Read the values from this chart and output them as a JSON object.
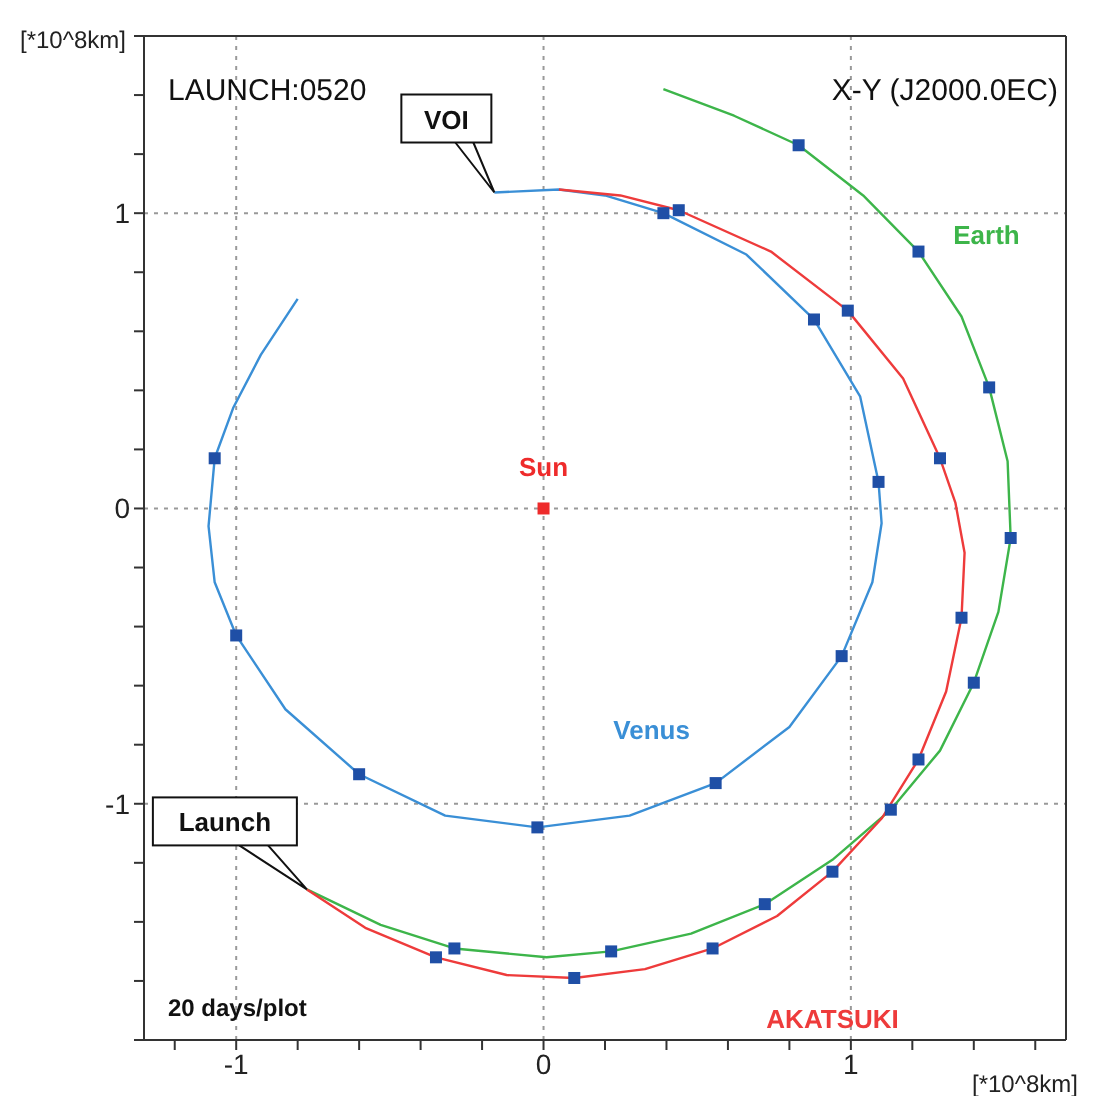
{
  "chart_data": {
    "type": "line",
    "xlabel": "[*10^8km]",
    "ylabel": "[*10^8km]",
    "xlim": [
      -1.3,
      1.7
    ],
    "ylim": [
      -1.8,
      1.6
    ],
    "xticks": [
      {
        "value": -1.2,
        "label": null
      },
      {
        "value": -1,
        "label": "-1"
      },
      {
        "value": -0.8,
        "label": null
      },
      {
        "value": -0.6,
        "label": null
      },
      {
        "value": -0.4,
        "label": null
      },
      {
        "value": -0.2,
        "label": null
      },
      0,
      {
        "value": 0.2,
        "label": null
      },
      {
        "value": 0.4,
        "label": null
      },
      {
        "value": 0.6,
        "label": null
      },
      {
        "value": 0.8,
        "label": null
      },
      1,
      {
        "value": 1.2,
        "label": null
      },
      {
        "value": 1.4,
        "label": null
      },
      {
        "value": 1.6,
        "label": null
      }
    ],
    "yticks": [
      {
        "value": -1.8,
        "label": null
      },
      {
        "value": -1.6,
        "label": null
      },
      {
        "value": -1.4,
        "label": null
      },
      {
        "value": -1.2,
        "label": null
      },
      {
        "value": -1,
        "label": "-1"
      },
      {
        "value": -0.8,
        "label": null
      },
      {
        "value": -0.6,
        "label": null
      },
      {
        "value": -0.4,
        "label": null
      },
      {
        "value": -0.2,
        "label": null
      },
      0,
      {
        "value": 0.2,
        "label": null
      },
      {
        "value": 0.4,
        "label": null
      },
      {
        "value": 0.6,
        "label": null
      },
      {
        "value": 0.8,
        "label": null
      },
      1,
      {
        "value": 1.2,
        "label": null
      },
      {
        "value": 1.4,
        "label": null
      },
      {
        "value": 1.6,
        "label": null
      }
    ],
    "grid": true,
    "annotations": [
      "LAUNCH:0520",
      "X-Y (J2000.0EC)",
      "20 days/plot",
      {
        "text": "VOI",
        "x": -0.16,
        "y": 1.07
      },
      {
        "text": "Launch",
        "x": -0.77,
        "y": -1.29
      }
    ],
    "series": [
      {
        "name": "Venus",
        "color": "#3a8fd6",
        "x": [
          -0.8,
          -0.92,
          -1.01,
          -1.07,
          -1.09,
          -1.07,
          -1.0,
          -0.84,
          -0.6,
          -0.32,
          -0.02,
          0.28,
          0.56,
          0.8,
          0.97,
          1.07,
          1.1,
          1.09,
          1.03,
          0.88,
          0.66,
          0.39,
          0.2,
          0.05,
          -0.16
        ],
        "values": [
          0.71,
          0.52,
          0.34,
          0.17,
          -0.06,
          -0.25,
          -0.43,
          -0.68,
          -0.9,
          -1.04,
          -1.08,
          -1.04,
          -0.93,
          -0.74,
          -0.5,
          -0.25,
          -0.05,
          0.09,
          0.38,
          0.64,
          0.86,
          1.0,
          1.06,
          1.08,
          1.07
        ]
      },
      {
        "name": "Earth",
        "color": "#3db54a",
        "x": [
          -0.77,
          -0.53,
          -0.29,
          0.01,
          0.22,
          0.48,
          0.72,
          0.94,
          1.13,
          1.29,
          1.4,
          1.48,
          1.52,
          1.51,
          1.45,
          1.36,
          1.22,
          1.04,
          0.83,
          0.62,
          0.39
        ],
        "values": [
          -1.29,
          -1.41,
          -1.49,
          -1.52,
          -1.5,
          -1.44,
          -1.34,
          -1.19,
          -1.02,
          -0.82,
          -0.59,
          -0.35,
          -0.1,
          0.16,
          0.41,
          0.65,
          0.87,
          1.06,
          1.23,
          1.33,
          1.42
        ]
      },
      {
        "name": "AKATSUKI",
        "color": "#ee3b3b",
        "x": [
          -0.77,
          -0.58,
          -0.35,
          -0.12,
          0.1,
          0.33,
          0.55,
          0.76,
          0.94,
          1.1,
          1.22,
          1.31,
          1.36,
          1.37,
          1.34,
          1.29,
          1.17,
          0.99,
          0.74,
          0.44,
          0.25,
          0.05
        ],
        "values": [
          -1.29,
          -1.42,
          -1.52,
          -1.58,
          -1.59,
          -1.56,
          -1.49,
          -1.38,
          -1.23,
          -1.05,
          -0.85,
          -0.62,
          -0.37,
          -0.15,
          0.02,
          0.17,
          0.44,
          0.67,
          0.87,
          1.01,
          1.06,
          1.08
        ]
      },
      {
        "type": "scatter",
        "marker": "square",
        "color": "#1f4fa6",
        "x": [
          -1.07,
          -1.0,
          -0.6,
          -0.02,
          0.56,
          0.97,
          1.09,
          0.88,
          0.39,
          -0.29,
          0.22,
          0.72,
          1.13,
          1.4,
          1.52,
          1.45,
          1.22,
          0.83,
          -0.35,
          0.1,
          0.55,
          0.94,
          1.22,
          1.36,
          1.29,
          0.99,
          0.44
        ],
        "values": [
          0.17,
          -0.43,
          -0.9,
          -1.08,
          -0.93,
          -0.5,
          0.09,
          0.64,
          1.0,
          -1.49,
          -1.5,
          -1.34,
          -1.02,
          -0.59,
          -0.1,
          0.41,
          0.87,
          1.23,
          -1.52,
          -1.59,
          -1.49,
          -1.23,
          -0.85,
          -0.37,
          0.17,
          0.67,
          1.01
        ]
      },
      {
        "name": "Sun",
        "type": "scatter",
        "marker": "square",
        "color": "#ee2b2b",
        "x": [
          0
        ],
        "values": [
          0
        ]
      }
    ]
  }
}
